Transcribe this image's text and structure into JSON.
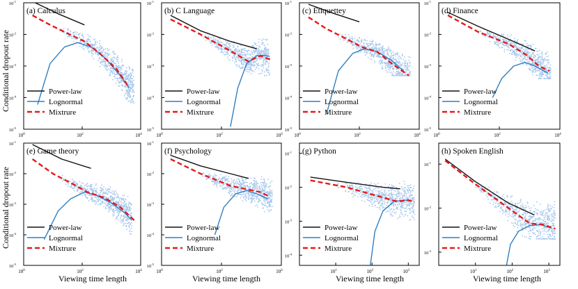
{
  "figure": {
    "ylabel": "Conditional dropout rate",
    "xlabel": "Viewing time length"
  },
  "colors": {
    "scatter": "#a8c8ec",
    "power": "#111111",
    "lognormal": "#2f7fc1",
    "mixture": "#e41a1c",
    "axis": "#000000"
  },
  "chart_data": [
    {
      "type": "scatter",
      "title": "(a) Calculus",
      "xscale": "log",
      "yscale": "log",
      "xlim": [
        1,
        10000
      ],
      "ylim": [
        1e-05,
        0.1
      ],
      "xticks": [
        "10^0",
        "10^2",
        "10^4"
      ],
      "yticks": [
        "10^-1",
        "10^-2",
        "10^-3",
        "10^-4",
        "10^-5"
      ],
      "scatter": {
        "xmin": 20,
        "xmax": 6000,
        "ymin": 6e-05,
        "ymax": 0.02
      },
      "series": [
        {
          "name": "Power-law",
          "x": [
            2,
            15,
            120
          ],
          "y": [
            0.11,
            0.045,
            0.02
          ]
        },
        {
          "name": "Lognormal",
          "x": [
            3,
            8,
            25,
            70,
            200,
            600,
            2000,
            4000
          ],
          "y": [
            6e-05,
            0.0012,
            0.004,
            0.0055,
            0.004,
            0.0018,
            0.0005,
            0.0002
          ]
        },
        {
          "name": "Mixtrure",
          "x": [
            2,
            8,
            30,
            120,
            400,
            1500,
            3500
          ],
          "y": [
            0.04,
            0.02,
            0.011,
            0.006,
            0.0025,
            0.0008,
            0.00025
          ]
        }
      ],
      "legend": [
        "Power-law",
        "Lognormal",
        "Mixtrure"
      ]
    },
    {
      "type": "scatter",
      "title": "(b) C Language",
      "xscale": "log",
      "yscale": "log",
      "xlim": [
        1,
        10000
      ],
      "ylim": [
        1e-05,
        0.1
      ],
      "xticks": [
        "10^0",
        "10^2",
        "10^4"
      ],
      "yticks": [
        "10^-1",
        "10^-2",
        "10^-3",
        "10^-4",
        "10^-5"
      ],
      "scatter": {
        "xmin": 20,
        "xmax": 4000,
        "ymin": 0.0005,
        "ymax": 0.03
      },
      "series": [
        {
          "name": "Power-law",
          "x": [
            2,
            20,
            200,
            1500
          ],
          "y": [
            0.04,
            0.013,
            0.006,
            0.0035
          ]
        },
        {
          "name": "Lognormal",
          "x": [
            200,
            350,
            700,
            1500,
            2500,
            4000
          ],
          "y": [
            1.2e-05,
            0.0002,
            0.0012,
            0.0021,
            0.0022,
            0.002
          ]
        },
        {
          "name": "Mixtrure",
          "x": [
            2,
            20,
            200,
            800,
            2000,
            5000
          ],
          "y": [
            0.03,
            0.01,
            0.003,
            0.0014,
            0.0021,
            0.0015
          ]
        }
      ],
      "legend": [
        "Power-law",
        "Lognormal",
        "Mixtrure"
      ]
    },
    {
      "type": "scatter",
      "title": "(c) Etiquettey",
      "xscale": "log",
      "yscale": "log",
      "xlim": [
        1,
        10000
      ],
      "ylim": [
        1e-05,
        0.1
      ],
      "xticks": [
        "10^0",
        "10^2",
        "10^4"
      ],
      "yticks": [
        "10^-1",
        "10^-2",
        "10^-3",
        "10^-4",
        "10^-5"
      ],
      "scatter": {
        "xmin": 20,
        "xmax": 5000,
        "ymin": 0.0005,
        "ymax": 0.02
      },
      "series": [
        {
          "name": "Power-law",
          "x": [
            2,
            15,
            100
          ],
          "y": [
            0.09,
            0.045,
            0.025
          ]
        },
        {
          "name": "Lognormal",
          "x": [
            8,
            20,
            60,
            150,
            400,
            1200,
            3000
          ],
          "y": [
            3e-05,
            0.0007,
            0.0025,
            0.0035,
            0.0028,
            0.0015,
            0.0007
          ]
        },
        {
          "name": "Mixtrure",
          "x": [
            2,
            8,
            30,
            120,
            400,
            1200,
            4500
          ],
          "y": [
            0.035,
            0.015,
            0.008,
            0.004,
            0.0028,
            0.0012,
            0.0005
          ]
        }
      ],
      "legend": [
        "Power-law",
        "Lognormal",
        "Mixtrure"
      ]
    },
    {
      "type": "scatter",
      "title": "(d) Finance",
      "xscale": "log",
      "yscale": "log",
      "xlim": [
        1,
        10000
      ],
      "ylim": [
        1e-05,
        0.1
      ],
      "xticks": [
        "10^0",
        "10^2",
        "10^4"
      ],
      "yticks": [
        "10^-1",
        "10^-2",
        "10^-3",
        "10^-4",
        "10^-5"
      ],
      "scatter": {
        "xmin": 20,
        "xmax": 5000,
        "ymin": 0.0004,
        "ymax": 0.02
      },
      "series": [
        {
          "name": "Power-law",
          "x": [
            2,
            20,
            200,
            1500
          ],
          "y": [
            0.05,
            0.018,
            0.007,
            0.003
          ]
        },
        {
          "name": "Lognormal",
          "x": [
            60,
            120,
            300,
            700,
            1500,
            4000
          ],
          "y": [
            0.0001,
            0.0004,
            0.001,
            0.0013,
            0.001,
            0.0006
          ]
        },
        {
          "name": "Mixtrure",
          "x": [
            2,
            20,
            200,
            800,
            2000,
            4500
          ],
          "y": [
            0.04,
            0.012,
            0.005,
            0.0022,
            0.001,
            0.0007
          ]
        }
      ],
      "legend": [
        "Power-law",
        "Lognormal",
        "Mixtrure"
      ]
    },
    {
      "type": "scatter",
      "title": "(e) Game theory",
      "xscale": "log",
      "yscale": "log",
      "xlim": [
        1,
        10000
      ],
      "ylim": [
        1e-05,
        0.1
      ],
      "xticks": [
        "10^0",
        "10^2",
        "10^4"
      ],
      "yticks": [
        "10^-1",
        "10^-2",
        "10^-3",
        "10^-4",
        "10^-5"
      ],
      "scatter": {
        "xmin": 20,
        "xmax": 5000,
        "ymin": 0.0001,
        "ymax": 0.01
      },
      "series": [
        {
          "name": "Power-law",
          "x": [
            2,
            20,
            200
          ],
          "y": [
            0.09,
            0.03,
            0.015
          ]
        },
        {
          "name": "Lognormal",
          "x": [
            5,
            15,
            40,
            120,
            300,
            1000,
            3000,
            5000
          ],
          "y": [
            7e-05,
            0.0006,
            0.0015,
            0.0025,
            0.002,
            0.0011,
            0.0005,
            0.0003
          ]
        },
        {
          "name": "Mixtrure",
          "x": [
            2,
            10,
            40,
            150,
            600,
            2000,
            6000
          ],
          "y": [
            0.03,
            0.01,
            0.005,
            0.0025,
            0.0016,
            0.0008,
            0.0003
          ]
        }
      ],
      "legend": [
        "Power-law",
        "Lognormal",
        "Mixtrure"
      ]
    },
    {
      "type": "scatter",
      "title": "(f) Psychology",
      "xscale": "log",
      "yscale": "log",
      "xlim": [
        1,
        10000
      ],
      "ylim": [
        1e-05,
        0.1
      ],
      "xticks": [
        "10^0",
        "10^2",
        "10^4"
      ],
      "yticks": [
        "10^-1",
        "10^-2",
        "10^-3",
        "10^-4",
        "10^-5"
      ],
      "scatter": {
        "xmin": 20,
        "xmax": 5000,
        "ymin": 0.0003,
        "ymax": 0.03
      },
      "series": [
        {
          "name": "Power-law",
          "x": [
            2,
            20,
            200,
            800
          ],
          "y": [
            0.04,
            0.018,
            0.01,
            0.007
          ]
        },
        {
          "name": "Lognormal",
          "x": [
            60,
            120,
            300,
            700,
            1500,
            3500
          ],
          "y": [
            0.0001,
            0.0008,
            0.0022,
            0.0028,
            0.0022,
            0.0015
          ]
        },
        {
          "name": "Mixtrure",
          "x": [
            2,
            20,
            200,
            800,
            2000,
            4000
          ],
          "y": [
            0.03,
            0.01,
            0.004,
            0.003,
            0.0025,
            0.0018
          ]
        }
      ],
      "legend": [
        "Power-law",
        "Lognormal",
        "Mixtrure"
      ]
    },
    {
      "type": "scatter",
      "title": "(g) Python",
      "xscale": "log",
      "yscale": "log",
      "xlim": [
        1,
        2000
      ],
      "ylim": [
        5e-05,
        0.2
      ],
      "xticks": [
        "10^1",
        "10^2",
        "10^3"
      ],
      "yticks": [
        "10^-1",
        "10^-2",
        "10^-3",
        "10^-4"
      ],
      "scatter": {
        "xmin": 10,
        "xmax": 1500,
        "ymin": 0.001,
        "ymax": 0.03
      },
      "series": [
        {
          "name": "Power-law",
          "x": [
            2,
            20,
            200,
            600
          ],
          "y": [
            0.02,
            0.014,
            0.01,
            0.009
          ]
        },
        {
          "name": "Lognormal",
          "x": [
            90,
            120,
            200,
            400,
            800,
            1200
          ],
          "y": [
            5e-05,
            0.0005,
            0.002,
            0.0038,
            0.0042,
            0.004
          ]
        },
        {
          "name": "Mixtrure",
          "x": [
            2,
            20,
            200,
            500,
            1000,
            1500
          ],
          "y": [
            0.016,
            0.01,
            0.005,
            0.0038,
            0.0042,
            0.0036
          ]
        }
      ],
      "legend": [
        "Power-law",
        "Lognormal",
        "Mixtrure"
      ]
    },
    {
      "type": "scatter",
      "title": "(h) Spoken English",
      "xscale": "log",
      "yscale": "log",
      "xlim": [
        1,
        2000
      ],
      "ylim": [
        0.0005,
        0.3
      ],
      "xticks": [
        "10^1",
        "10^2",
        "10^3"
      ],
      "yticks": [
        "10^-1",
        "10^-2",
        "10^-3"
      ],
      "scatter": {
        "xmin": 10,
        "xmax": 1500,
        "ymin": 0.002,
        "ymax": 0.03
      },
      "series": [
        {
          "name": "Power-law",
          "x": [
            1.5,
            10,
            80,
            400
          ],
          "y": [
            0.13,
            0.04,
            0.013,
            0.007
          ]
        },
        {
          "name": "Lognormal",
          "x": [
            70,
            90,
            150,
            300,
            600,
            1200
          ],
          "y": [
            0.0005,
            0.0015,
            0.003,
            0.004,
            0.0042,
            0.0035
          ]
        },
        {
          "name": "Mixtrure",
          "x": [
            1.5,
            10,
            80,
            300,
            700,
            1500
          ],
          "y": [
            0.12,
            0.035,
            0.01,
            0.0045,
            0.0042,
            0.0034
          ]
        }
      ],
      "legend": [
        "Power-law",
        "Lognormal",
        "Mixtrure"
      ]
    }
  ]
}
